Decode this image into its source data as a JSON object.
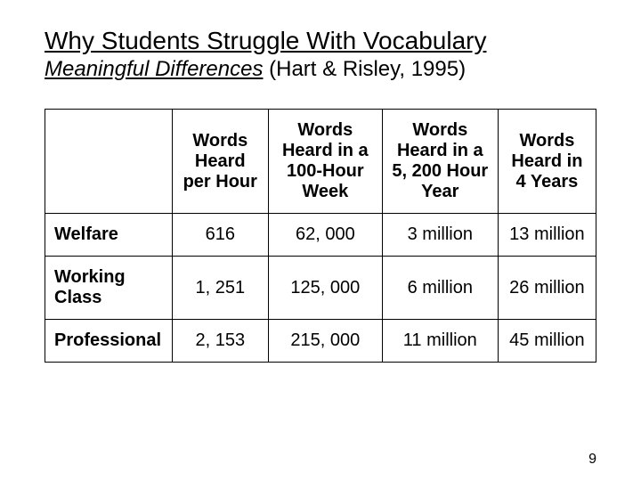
{
  "title": "Why Students Struggle With Vocabulary",
  "subtitle_italic": "Meaningful Differences",
  "citation": " (Hart & Risley, 1995)",
  "table": {
    "columns": [
      "",
      "Words Heard per Hour",
      "Words Heard in a 100-Hour Week",
      "Words Heard in a 5, 200 Hour Year",
      "Words Heard in 4 Years"
    ],
    "rows": [
      {
        "label": "Welfare",
        "cells": [
          "616",
          "62, 000",
          "3 million",
          "13 million"
        ]
      },
      {
        "label": "Working Class",
        "cells": [
          "1, 251",
          "125, 000",
          "6 million",
          "26 million"
        ]
      },
      {
        "label": "Professional",
        "cells": [
          "2, 153",
          "215, 000",
          "11 million",
          "45 million"
        ]
      }
    ],
    "border_color": "#000000",
    "background_color": "#ffffff",
    "header_fontsize": 20,
    "cell_fontsize": 20,
    "font_family": "Arial"
  },
  "page_number": "9"
}
